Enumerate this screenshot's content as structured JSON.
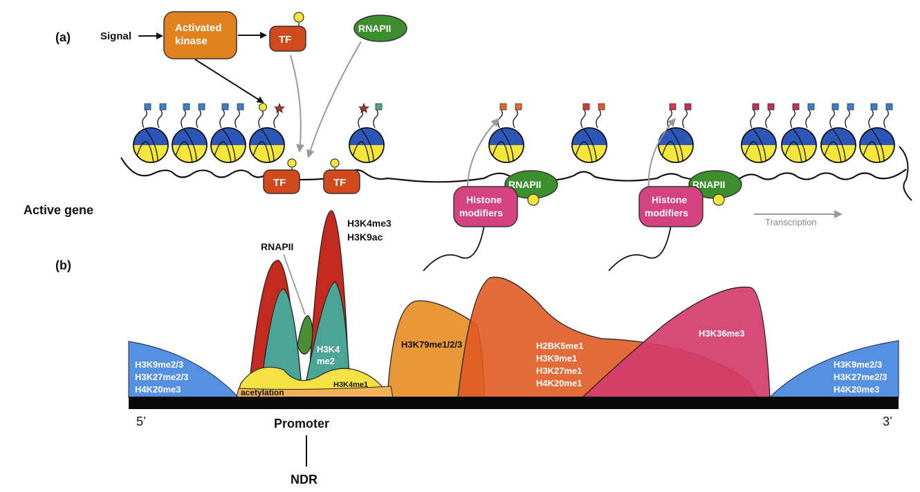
{
  "panel_labels": {
    "a": "(a)",
    "b": "(b)"
  },
  "side_label": "Active gene",
  "signal": "Signal",
  "kinase": {
    "line1": "Activated",
    "line2": "kinase"
  },
  "tf_label": "TF",
  "rnapii_label": "RNAPII",
  "histone_modifiers": {
    "line1": "Histone",
    "line2": "modifiers"
  },
  "transcription": "Transcription",
  "marks": {
    "h3k4me3": "H3K4me3",
    "h3k9ac": "H3K9ac",
    "rnapii_b": "RNAPII",
    "h3k4me2_a": "H3K4",
    "h3k4me2_b": "me2",
    "h3k4me1": "H3K4me1",
    "acetylation": "acetylation",
    "h3k79": "H3K79me1/2/3",
    "h2bk5me1": "H2BK5me1",
    "h3k9me1": "H3K9me1",
    "h3k27me1": "H3K27me1",
    "h4k20me1": "H4K20me1",
    "h3k36me3": "H3K36me3"
  },
  "hetero_left": [
    "H3K9me2/3",
    "H3K27me2/3",
    "H4K20me3"
  ],
  "hetero_right": [
    "H3K9me2/3",
    "H3K27me2/3",
    "H4K20me3"
  ],
  "ends": {
    "five": "5’",
    "three": "3’"
  },
  "promoter": "Promoter",
  "ndr": "NDR",
  "colors": {
    "kinase": "#e2821f",
    "tf": "#d04a1d",
    "rnapii": "#3d8f2e",
    "histone_mod": "#d4427f",
    "nuc_top": "#2c57b8",
    "nuc_bottom": "#f5e63a",
    "red_peak": "#c42a1f",
    "teal_peak": "#4aa596",
    "green_peak": "#4b8f35",
    "yellow": "#f4e242",
    "orange_peak": "#e8922e",
    "orange_red": "#e05a23",
    "magenta": "#d43c6d",
    "blue_end": "#5591e0",
    "arrow_gray": "#999999"
  }
}
